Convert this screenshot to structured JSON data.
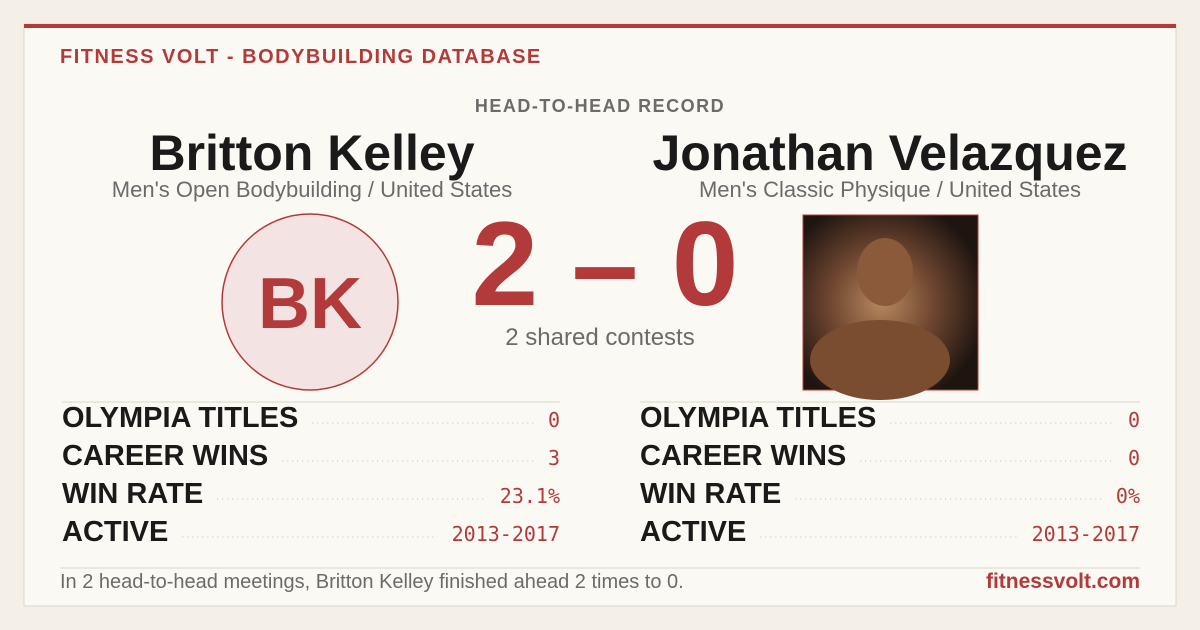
{
  "header": {
    "brand": "FITNESS VOLT - BODYBUILDING DATABASE",
    "section": "HEAD-TO-HEAD RECORD"
  },
  "left": {
    "name": "Britton Kelley",
    "division": "Men's Open Bodybuilding / United States",
    "initials": "BK",
    "stats": [
      {
        "label": "OLYMPIA TITLES",
        "value": "0"
      },
      {
        "label": "CAREER WINS",
        "value": "3"
      },
      {
        "label": "WIN RATE",
        "value": "23.1%"
      },
      {
        "label": "ACTIVE",
        "value": "2013-2017"
      }
    ]
  },
  "right": {
    "name": "Jonathan Velazquez",
    "division": "Men's Classic Physique / United States",
    "stats": [
      {
        "label": "OLYMPIA TITLES",
        "value": "0"
      },
      {
        "label": "CAREER WINS",
        "value": "0"
      },
      {
        "label": "WIN RATE",
        "value": "0%"
      },
      {
        "label": "ACTIVE",
        "value": "2013-2017"
      }
    ]
  },
  "score": {
    "text": "2 – 0",
    "note": "2 shared contests"
  },
  "footer": {
    "summary": "In 2 head-to-head meetings, Britton Kelley finished ahead 2 times to 0.",
    "site": "fitnessvolt.com"
  }
}
